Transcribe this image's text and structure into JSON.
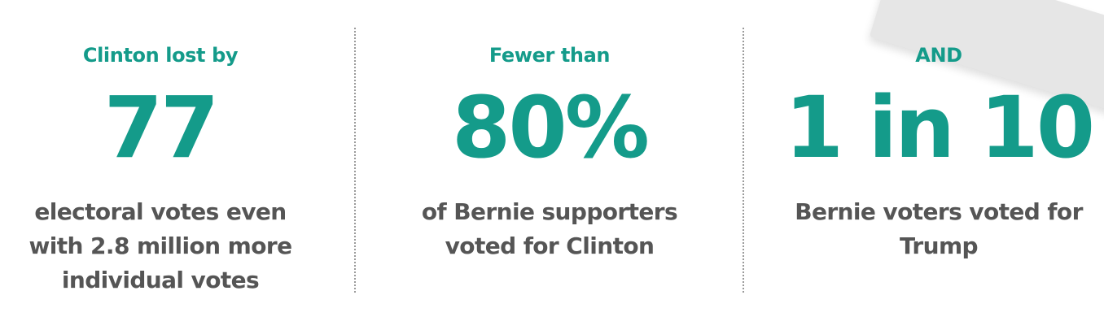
{
  "stats": [
    {
      "label": "Clinton lost by",
      "number": "77",
      "description": [
        "electoral votes even",
        "with 2.8 million more",
        "individual votes"
      ]
    },
    {
      "label": "Fewer than",
      "number": "80%",
      "description": [
        "of Bernie supporters",
        "voted for Clinton"
      ]
    },
    {
      "label": "AND",
      "number": "1 in 10",
      "description": [
        "Bernie voters voted for",
        "Trump"
      ]
    }
  ],
  "colors": {
    "accent": "#149b8a",
    "body_text": "#555555",
    "divider": "#9a9a9a",
    "corner_shape": "#e6e6e6"
  }
}
